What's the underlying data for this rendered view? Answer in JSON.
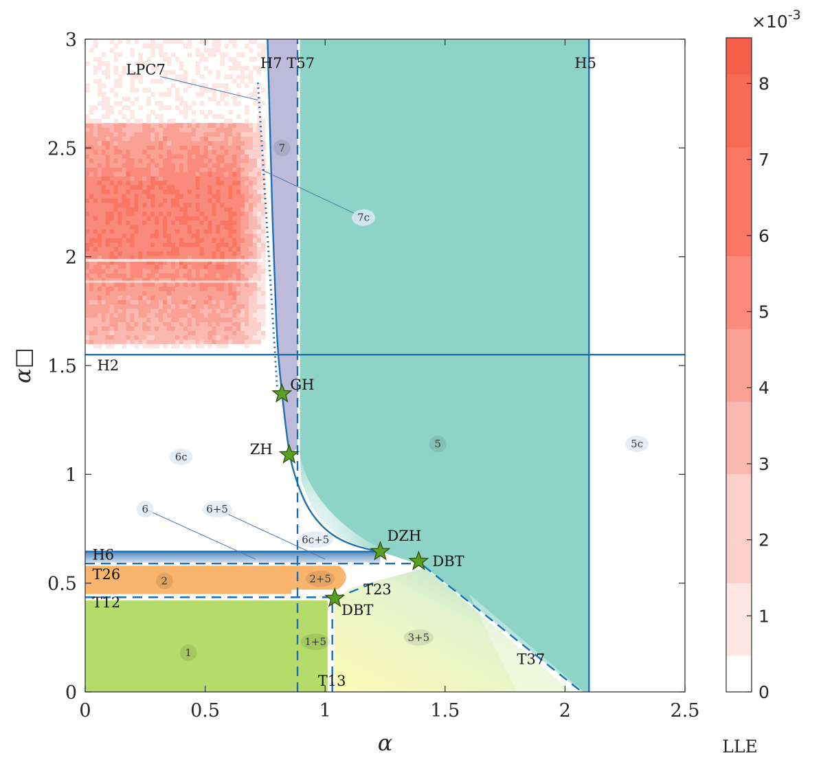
{
  "chart_data": {
    "type": "heatmap",
    "xlabel": "α",
    "ylabel": "α□",
    "xlim": [
      0,
      2.5
    ],
    "ylim": [
      0,
      3
    ],
    "x_ticks": [
      "0",
      "0.5",
      "1",
      "1.5",
      "2",
      "2.5"
    ],
    "y_ticks": [
      "0",
      "0.5",
      "1",
      "1.5",
      "2",
      "2.5",
      "3"
    ],
    "colorbar": {
      "title": "LLE",
      "exponent": "×10-3",
      "range": [
        0,
        8.6
      ],
      "ticks": [
        "0",
        "1",
        "2",
        "3",
        "4",
        "5",
        "6",
        "7",
        "8"
      ],
      "colors": [
        "#ffffff",
        "#fde7e4",
        "#fcd0ca",
        "#fbb8b0",
        "#faa196",
        "#f98a7c",
        "#f87662",
        "#f76a54",
        "#f6604a"
      ]
    },
    "lle_region": {
      "x": [
        0,
        0.75
      ],
      "y": [
        1.6,
        2.6
      ],
      "max_value": 7,
      "color": "#f6604a"
    },
    "regions": [
      {
        "label": "1",
        "x": 0.43,
        "y": 0.18,
        "color": "#b5dc6a"
      },
      {
        "label": "2",
        "x": 0.33,
        "y": 0.51,
        "color": "#fab56c"
      },
      {
        "label": "1+5",
        "x": 0.96,
        "y": 0.23,
        "color": "#b5dc6a"
      },
      {
        "label": "2+5",
        "x": 0.98,
        "y": 0.52,
        "color": "#fab56c"
      },
      {
        "label": "3+5",
        "x": 1.39,
        "y": 0.25,
        "color": "#fdfbb5"
      },
      {
        "label": "5",
        "x": 1.47,
        "y": 1.14,
        "color": "#8ed3c7"
      },
      {
        "label": "5c",
        "x": 2.3,
        "y": 1.14,
        "color": "#ffffff"
      },
      {
        "label": "6",
        "x": 0.25,
        "y": 0.84,
        "color": "#ffffff"
      },
      {
        "label": "6+5",
        "x": 0.55,
        "y": 0.84,
        "color": "#ffffff"
      },
      {
        "label": "6c",
        "x": 0.4,
        "y": 1.08,
        "color": "#ffffff"
      },
      {
        "label": "6c+5",
        "x": 0.96,
        "y": 0.7,
        "color": "#ffffff"
      },
      {
        "label": "7",
        "x": 0.82,
        "y": 2.5,
        "color": "#bebada"
      },
      {
        "label": "7c",
        "x": 1.16,
        "y": 2.18,
        "color": "#ffffff"
      }
    ],
    "curve_labels": [
      {
        "text": "H7",
        "x": 0.73,
        "y": 2.89
      },
      {
        "text": "T57",
        "x": 0.84,
        "y": 2.89
      },
      {
        "text": "H5",
        "x": 2.04,
        "y": 2.89
      },
      {
        "text": "LPC7",
        "x": 0.17,
        "y": 2.86
      },
      {
        "text": "H2",
        "x": 0.05,
        "y": 1.5
      },
      {
        "text": "H6",
        "x": 0.03,
        "y": 0.63
      },
      {
        "text": "T26",
        "x": 0.03,
        "y": 0.54
      },
      {
        "text": "T12",
        "x": 0.03,
        "y": 0.41
      },
      {
        "text": "T23",
        "x": 1.16,
        "y": 0.47
      },
      {
        "text": "T13",
        "x": 0.97,
        "y": 0.05
      },
      {
        "text": "T37",
        "x": 1.8,
        "y": 0.15
      }
    ],
    "points": [
      {
        "label": "GH",
        "x": 0.82,
        "y": 1.37,
        "label_dx": 12,
        "label_dy": -6
      },
      {
        "label": "ZH",
        "x": 0.85,
        "y": 1.09,
        "label_dx": -57,
        "label_dy": -1
      },
      {
        "label": "DZH",
        "x": 1.23,
        "y": 0.645,
        "label_dx": 10,
        "label_dy": -16
      },
      {
        "label": "DBT",
        "x": 1.39,
        "y": 0.6,
        "label_dx": 20,
        "label_dy": 7
      },
      {
        "label": "DBT",
        "x": 1.04,
        "y": 0.43,
        "label_dx": 10,
        "label_dy": 24
      }
    ],
    "lines": {
      "H2": {
        "y": 1.55,
        "x": [
          0,
          2.5
        ]
      },
      "H5": {
        "x": 2.1,
        "y": [
          0,
          3
        ]
      },
      "H6": {
        "y": 0.645,
        "x": [
          0,
          1.23
        ]
      },
      "T26": {
        "y": 0.59,
        "x": [
          0,
          1.39
        ]
      },
      "T12": {
        "y": 0.435,
        "x": [
          0,
          1.04
        ]
      },
      "T57": {
        "x": 0.885,
        "y": [
          0,
          3
        ]
      },
      "T13": {
        "x": 1.03,
        "y": [
          0,
          0.43
        ]
      },
      "T23": {
        "x": [
          1.04,
          1.2
        ],
        "y": [
          0.43,
          0.5
        ]
      },
      "T37": {
        "x": [
          1.41,
          2.07
        ],
        "y": [
          0.58,
          0
        ]
      },
      "LPC7": {
        "x": [
          0.72,
          0.8
        ],
        "y": [
          2.8,
          1.4
        ]
      },
      "H7_curve": {
        "x": [
          0.76,
          0.77,
          0.78,
          0.79,
          0.8,
          0.82,
          0.85,
          0.88,
          0.92,
          0.97,
          1.03,
          1.1,
          1.18,
          1.23
        ],
        "y": [
          3,
          2.6,
          2.2,
          1.9,
          1.6,
          1.37,
          1.09,
          0.97,
          0.86,
          0.78,
          0.72,
          0.68,
          0.655,
          0.645
        ]
      }
    }
  }
}
